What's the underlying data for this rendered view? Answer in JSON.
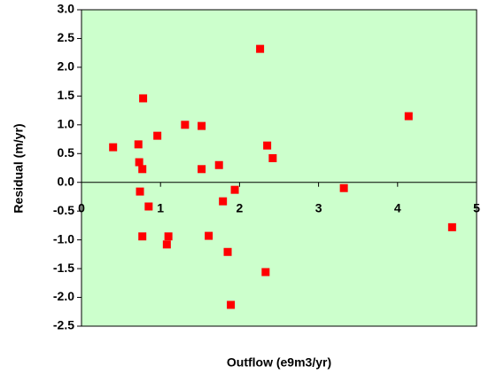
{
  "chart_data": {
    "type": "scatter",
    "x_label": "Outflow (e9m3/yr)",
    "y_label": "Residual (m/yr)",
    "series": [
      {
        "color": "#ff0000",
        "x": [
          0.4,
          0.72,
          0.73,
          0.77,
          0.78,
          0.74,
          0.85,
          0.77,
          0.96,
          1.1,
          1.08,
          1.31,
          1.52,
          1.52,
          1.74,
          1.61,
          1.79,
          1.94,
          1.85,
          1.89,
          2.26,
          2.35,
          2.42,
          2.33,
          3.32,
          4.14,
          4.69
        ],
        "values": [
          0.61,
          0.66,
          0.35,
          0.23,
          1.46,
          -0.16,
          -0.42,
          -0.94,
          0.81,
          -0.94,
          -1.08,
          1.0,
          0.98,
          0.23,
          0.3,
          -0.93,
          -0.33,
          -0.13,
          -1.21,
          -2.13,
          2.32,
          0.64,
          0.42,
          -1.56,
          -0.1,
          1.15,
          -0.78
        ]
      }
    ],
    "xlim": [
      0,
      5
    ],
    "xticks": [
      0,
      1,
      2,
      3,
      4,
      5
    ],
    "ylim": [
      -2.5,
      3
    ],
    "yticks": [
      {
        "value": -2.5,
        "label": "-2.5"
      },
      {
        "value": -2,
        "label": "-2.0"
      },
      {
        "value": -1.5,
        "label": "-1.5"
      },
      {
        "value": -1,
        "label": "-1.0"
      },
      {
        "value": -0.5,
        "label": "-0.5"
      },
      {
        "value": 0,
        "label": "0.0"
      },
      {
        "value": 0.5,
        "label": "0.5"
      },
      {
        "value": 1,
        "label": "1.0"
      },
      {
        "value": 1.5,
        "label": "1.5"
      },
      {
        "value": 2,
        "label": "2.0"
      },
      {
        "value": 2.5,
        "label": "2.5"
      },
      {
        "value": 3,
        "label": "3.0"
      }
    ],
    "plot_background": "#ccffcc"
  }
}
